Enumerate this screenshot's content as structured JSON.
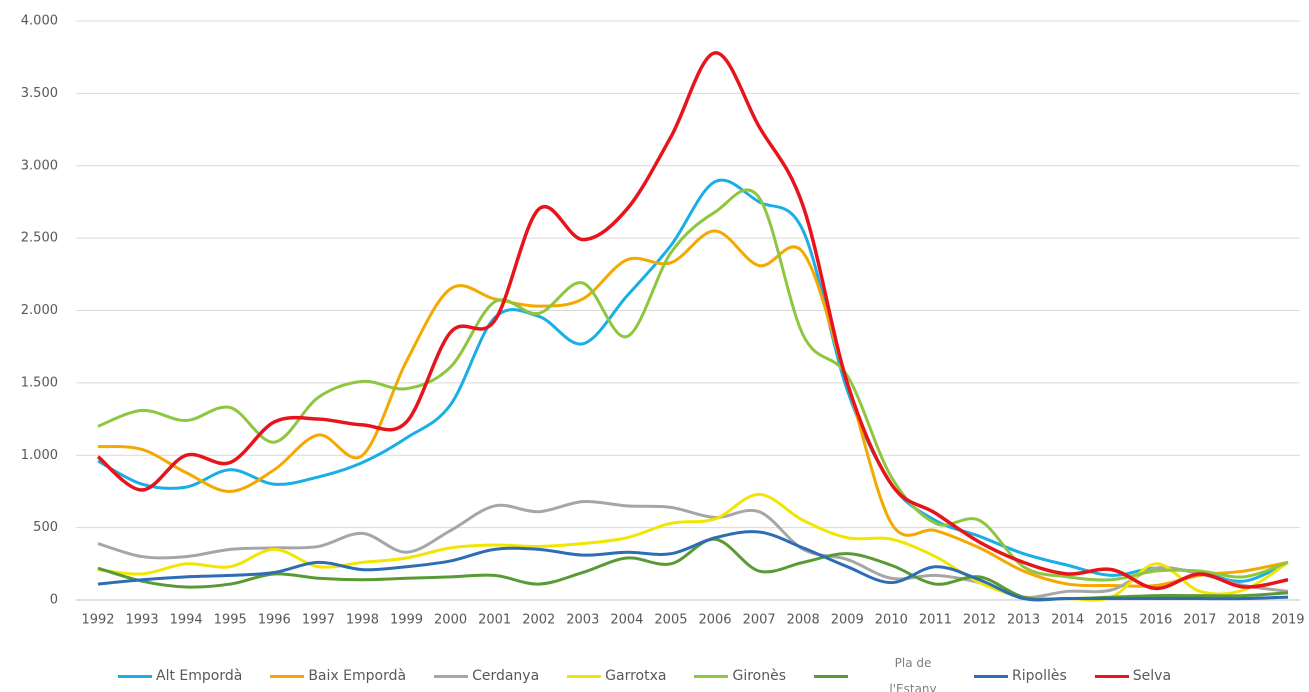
{
  "chart_data": {
    "type": "line",
    "categories": [
      "1992",
      "1993",
      "1994",
      "1995",
      "1996",
      "1997",
      "1998",
      "1999",
      "2000",
      "2001",
      "2002",
      "2003",
      "2004",
      "2005",
      "2006",
      "2007",
      "2008",
      "2009",
      "2010",
      "2011",
      "2012",
      "2013",
      "2014",
      "2015",
      "2016",
      "2017",
      "2018",
      "2019"
    ],
    "ylim": [
      0,
      4000
    ],
    "yticks": [
      0,
      500,
      {
        "value": 1000,
        "label": "1.000"
      },
      {
        "value": 1500,
        "label": "1.500"
      },
      {
        "value": 2000,
        "label": "2.000"
      },
      {
        "value": 2500,
        "label": "2.500"
      },
      {
        "value": 3000,
        "label": "3.000"
      },
      {
        "value": 3500,
        "label": "3.500"
      },
      {
        "value": 4000,
        "label": "4.000"
      }
    ],
    "grid": true,
    "legend": "bottom",
    "series": [
      {
        "name": "Alt Empordà",
        "color": "#1aaee6",
        "values": [
          960,
          800,
          780,
          900,
          800,
          850,
          950,
          1120,
          1350,
          1950,
          1960,
          1770,
          2100,
          2450,
          2890,
          2750,
          2550,
          1450,
          800,
          550,
          440,
          320,
          240,
          170,
          220,
          190,
          130,
          260
        ]
      },
      {
        "name": "Baix Empordà",
        "color": "#f5a800",
        "values": [
          1060,
          1040,
          880,
          750,
          900,
          1140,
          1000,
          1650,
          2150,
          2080,
          2030,
          2080,
          2350,
          2330,
          2550,
          2310,
          2400,
          1500,
          530,
          480,
          360,
          200,
          110,
          100,
          100,
          170,
          200,
          260
        ]
      },
      {
        "name": "Cerdanya",
        "color": "#a6a6a6",
        "values": [
          390,
          300,
          300,
          350,
          360,
          370,
          460,
          330,
          480,
          650,
          610,
          680,
          650,
          640,
          570,
          610,
          350,
          280,
          150,
          170,
          120,
          20,
          60,
          70,
          220,
          180,
          100,
          60
        ]
      },
      {
        "name": "Garrotxa",
        "color": "#f0e600",
        "values": [
          210,
          180,
          250,
          230,
          350,
          230,
          260,
          290,
          360,
          380,
          370,
          390,
          430,
          530,
          560,
          730,
          550,
          430,
          420,
          300,
          120,
          20,
          10,
          20,
          250,
          60,
          70,
          260
        ]
      },
      {
        "name": "Gironès",
        "color": "#8dc63f",
        "values": [
          1200,
          1310,
          1240,
          1330,
          1090,
          1400,
          1510,
          1460,
          1610,
          2060,
          1980,
          2190,
          1820,
          2400,
          2680,
          2780,
          1830,
          1550,
          850,
          530,
          550,
          230,
          160,
          140,
          200,
          200,
          160,
          260
        ]
      },
      {
        "name": "Pla de l'Estany",
        "color": "#5a9a35",
        "values": [
          220,
          130,
          90,
          110,
          180,
          150,
          140,
          150,
          160,
          170,
          110,
          190,
          290,
          250,
          420,
          200,
          260,
          320,
          240,
          110,
          160,
          20,
          10,
          20,
          30,
          30,
          30,
          50
        ]
      },
      {
        "name": "Ripollès",
        "color": "#2e6db4",
        "values": [
          110,
          140,
          160,
          170,
          190,
          260,
          210,
          230,
          270,
          350,
          350,
          310,
          330,
          320,
          430,
          470,
          360,
          230,
          120,
          230,
          140,
          10,
          10,
          10,
          10,
          10,
          10,
          20
        ]
      },
      {
        "name": "Selva",
        "color": "#e8141c",
        "values": [
          990,
          760,
          1000,
          950,
          1230,
          1250,
          1210,
          1230,
          1850,
          1930,
          2700,
          2490,
          2700,
          3200,
          3780,
          3270,
          2720,
          1500,
          800,
          600,
          400,
          260,
          180,
          210,
          80,
          180,
          90,
          140
        ]
      }
    ]
  }
}
